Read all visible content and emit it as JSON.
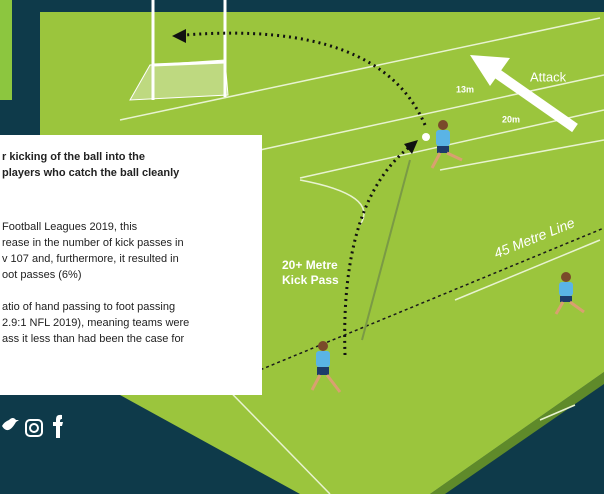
{
  "pitch": {
    "attack": "Attack",
    "marker_13": "13m",
    "marker_20": "20m",
    "line_label": "45 Metre Line",
    "pass_label": [
      "20+ Metre",
      "Kick Pass"
    ]
  },
  "info_box": {
    "heading": [
      "r kicking of the ball into the",
      "players who catch the ball cleanly"
    ],
    "paragraphs": [
      [
        "Football Leagues 2019, this",
        "rease in the number of kick passes in",
        "v 107 and, furthermore, it resulted in",
        "oot passes (6%)"
      ],
      [
        "atio of hand passing to foot passing",
        "2.9:1 NFL 2019), meaning teams were",
        "ass it less than had been the case for"
      ]
    ]
  }
}
